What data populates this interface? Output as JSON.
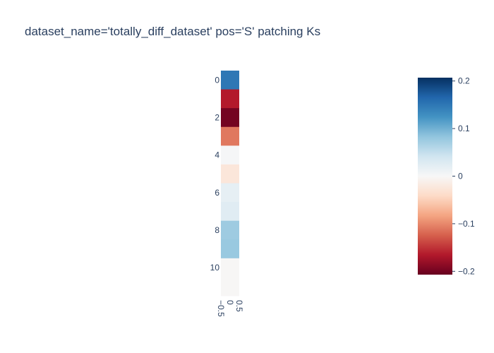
{
  "chart_data": {
    "type": "heatmap",
    "title": "dataset_name='totally_diff_dataset' pos='S' patching Ks",
    "xlabel": "",
    "ylabel": "",
    "x_tick_labels": [
      "−0.5",
      "0",
      "0.5"
    ],
    "y_tick_labels": [
      "0",
      "2",
      "4",
      "6",
      "8",
      "10"
    ],
    "x_range": [
      -0.5,
      0.5
    ],
    "y_range": [
      -0.5,
      11.5
    ],
    "rows": [
      0,
      1,
      2,
      3,
      4,
      5,
      6,
      7,
      8,
      9,
      10,
      11
    ],
    "values": [
      0.15,
      -0.165,
      -0.2,
      -0.11,
      0.002,
      -0.025,
      0.018,
      0.025,
      0.075,
      0.078,
      -0.002,
      -0.002
    ],
    "colorscale": "RdBu",
    "zmin": -0.207,
    "zmax": 0.207,
    "colorbar_tick_values": [
      0.2,
      0.1,
      0,
      -0.1,
      -0.2
    ],
    "colorbar_tick_labels": [
      "0.2",
      "0.1",
      "0",
      "−0.1",
      "−0.2"
    ]
  }
}
